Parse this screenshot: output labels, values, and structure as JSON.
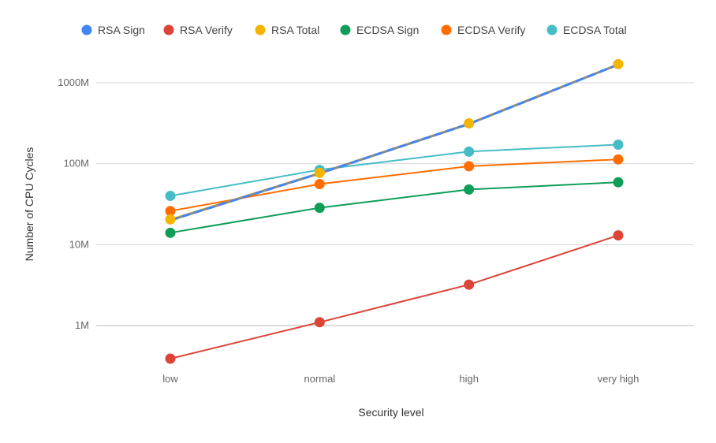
{
  "chart_data": {
    "type": "line",
    "title": "",
    "xlabel": "Security level",
    "ylabel": "Number of CPU Cycles",
    "y_scale": "log",
    "ylim": [
      300000,
      2000000000
    ],
    "grid": true,
    "legend_position": "top",
    "categories": [
      "low",
      "normal",
      "high",
      "very high"
    ],
    "y_ticks": [
      {
        "value": 1000000,
        "label": "1M"
      },
      {
        "value": 10000000,
        "label": "10M"
      },
      {
        "value": 100000000,
        "label": "100M"
      },
      {
        "value": 1000000000,
        "label": "1000M"
      }
    ],
    "series": [
      {
        "name": "RSA Sign",
        "color": "#4285F4",
        "dashed": true,
        "values": [
          20000000,
          76000000,
          310000000,
          1680000000
        ]
      },
      {
        "name": "RSA Verify",
        "color": "#DB4437",
        "dashed": false,
        "values": [
          390000,
          1100000,
          3200000,
          13000000
        ]
      },
      {
        "name": "RSA Total",
        "color": "#F4B400",
        "dashed": false,
        "values": [
          20500000,
          77000000,
          315000000,
          1700000000
        ]
      },
      {
        "name": "ECDSA Sign",
        "color": "#0F9D58",
        "dashed": false,
        "values": [
          14000000,
          28500000,
          48000000,
          59000000
        ]
      },
      {
        "name": "ECDSA Verify",
        "color": "#FF6D00",
        "dashed": false,
        "values": [
          26000000,
          56000000,
          93000000,
          113000000
        ]
      },
      {
        "name": "ECDSA Total",
        "color": "#46BDC6",
        "dashed": false,
        "values": [
          40000000,
          84000000,
          141000000,
          172000000
        ]
      }
    ]
  }
}
